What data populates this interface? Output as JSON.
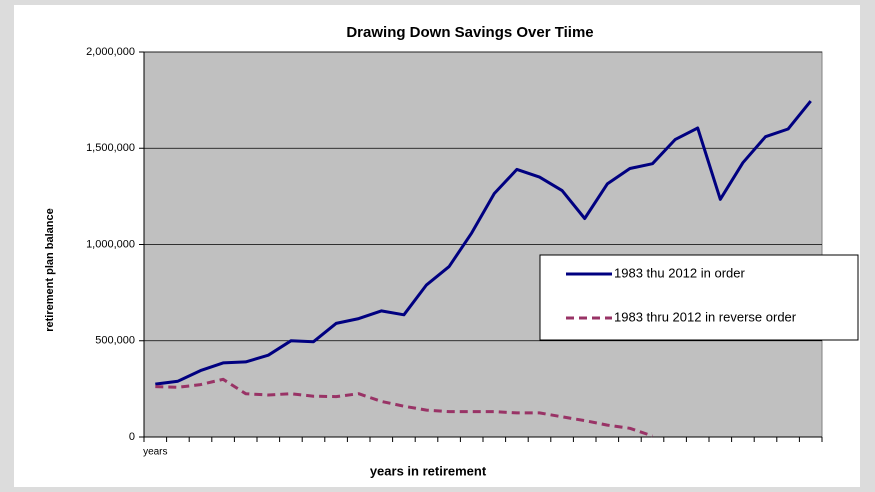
{
  "chart_data": {
    "type": "line",
    "title": "Drawing Down Savings Over Tiime",
    "y_label": "retirement plan balance",
    "x_label": "years in retirement",
    "categories": [
      "years",
      null,
      null,
      null,
      null,
      null,
      null,
      null,
      null,
      null,
      null,
      null,
      null,
      null,
      null,
      null,
      null,
      null,
      null,
      null,
      null,
      null,
      null,
      null,
      null,
      null,
      null,
      null,
      null,
      null
    ],
    "series": [
      {
        "name": "1983 thu 2012 in order",
        "color": "#000080",
        "dash": false,
        "values": [
          275000,
          290000,
          345000,
          385000,
          390000,
          425000,
          500000,
          495000,
          590000,
          615000,
          655000,
          635000,
          790000,
          885000,
          1060000,
          1265000,
          1390000,
          1350000,
          1280000,
          1135000,
          1315000,
          1395000,
          1420000,
          1545000,
          1605000,
          1235000,
          1425000,
          1560000,
          1600000,
          1745000
        ]
      },
      {
        "name": "1983 thru 2012 in reverse order",
        "color": "#993366",
        "dash": true,
        "values": [
          262000,
          258000,
          272000,
          300000,
          225000,
          218000,
          225000,
          212000,
          210000,
          225000,
          185000,
          160000,
          140000,
          132000,
          132000,
          132000,
          125000,
          125000,
          105000,
          85000,
          62000,
          45000,
          5000,
          null,
          null,
          null,
          null,
          null,
          null,
          null
        ]
      }
    ],
    "ylim": [
      0,
      2000000
    ],
    "yticks": [
      0,
      {
        "value": 500000,
        "label": "500,000"
      },
      {
        "value": 1000000,
        "label": "1,000,000"
      },
      {
        "value": 1500000,
        "label": "1,500,000"
      },
      {
        "value": 2000000,
        "label": "2,000,000"
      }
    ],
    "grid": true
  }
}
